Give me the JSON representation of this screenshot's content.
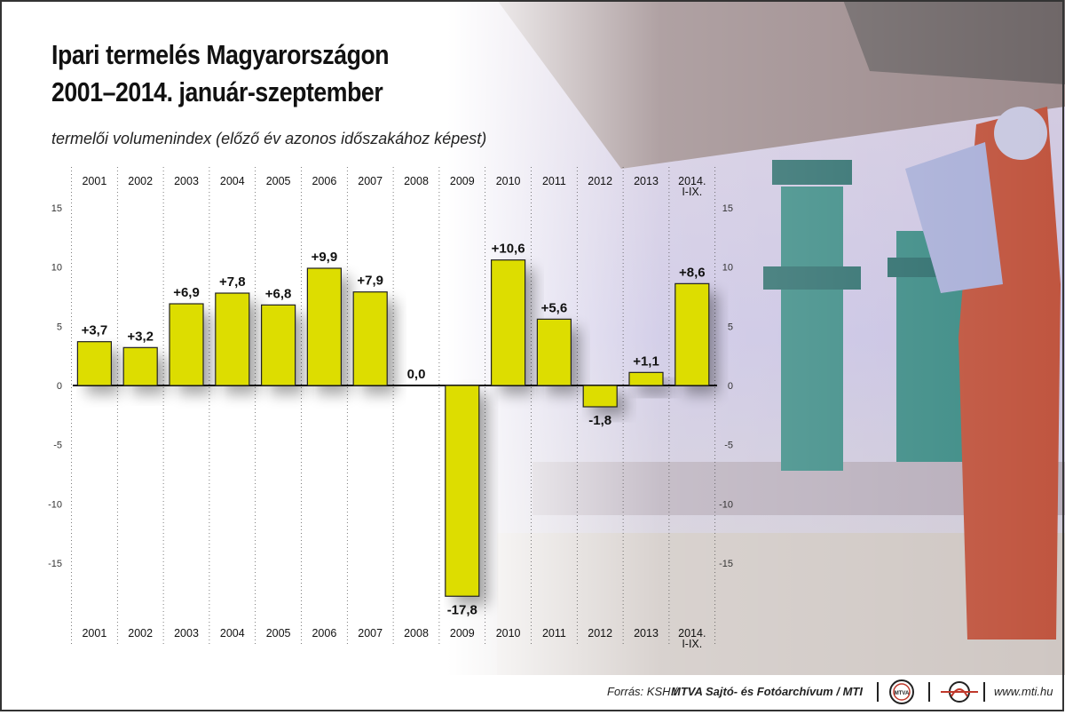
{
  "title_line1": "Ipari termelés Magyarországon",
  "title_line2": "2001–2014. január-szeptember",
  "subtitle": "termelői volumenindex (előző év azonos időszakához képest)",
  "footer": {
    "source": "Forrás: KSH /",
    "org": "MTVA Sajtó- és Fotóarchívum / MTI",
    "site": "www.mti.hu",
    "logo1_text": "MTVA"
  },
  "colors": {
    "bar": "#dddd00",
    "bar_stroke": "#222222",
    "frame": "#333333"
  },
  "chart_data": {
    "type": "bar",
    "categories": [
      "2001",
      "2002",
      "2003",
      "2004",
      "2005",
      "2006",
      "2007",
      "2008",
      "2009",
      "2010",
      "2011",
      "2012",
      "2013",
      "2014.\nI-IX."
    ],
    "values": [
      3.7,
      3.2,
      6.9,
      7.8,
      6.8,
      9.9,
      7.9,
      0.0,
      -17.8,
      10.6,
      5.6,
      -1.8,
      1.1,
      8.6
    ],
    "data_labels": [
      "+3,7",
      "+3,2",
      "+6,9",
      "+7,8",
      "+6,8",
      "+9,9",
      "+7,9",
      "0,0",
      "-17,8",
      "+10,6",
      "+5,6",
      "-1,8",
      "+1,1",
      "+8,6"
    ],
    "yticks": [
      "15",
      "10",
      "5",
      "0",
      "-5",
      "-10",
      "-15"
    ],
    "ylim": [
      -20,
      18
    ],
    "title": "Ipari termelés Magyarországon 2001–2014. január-szeptember",
    "xlabel": "",
    "ylabel": "termelői volumenindex (előző év azonos időszakához képest)",
    "grid": false
  }
}
